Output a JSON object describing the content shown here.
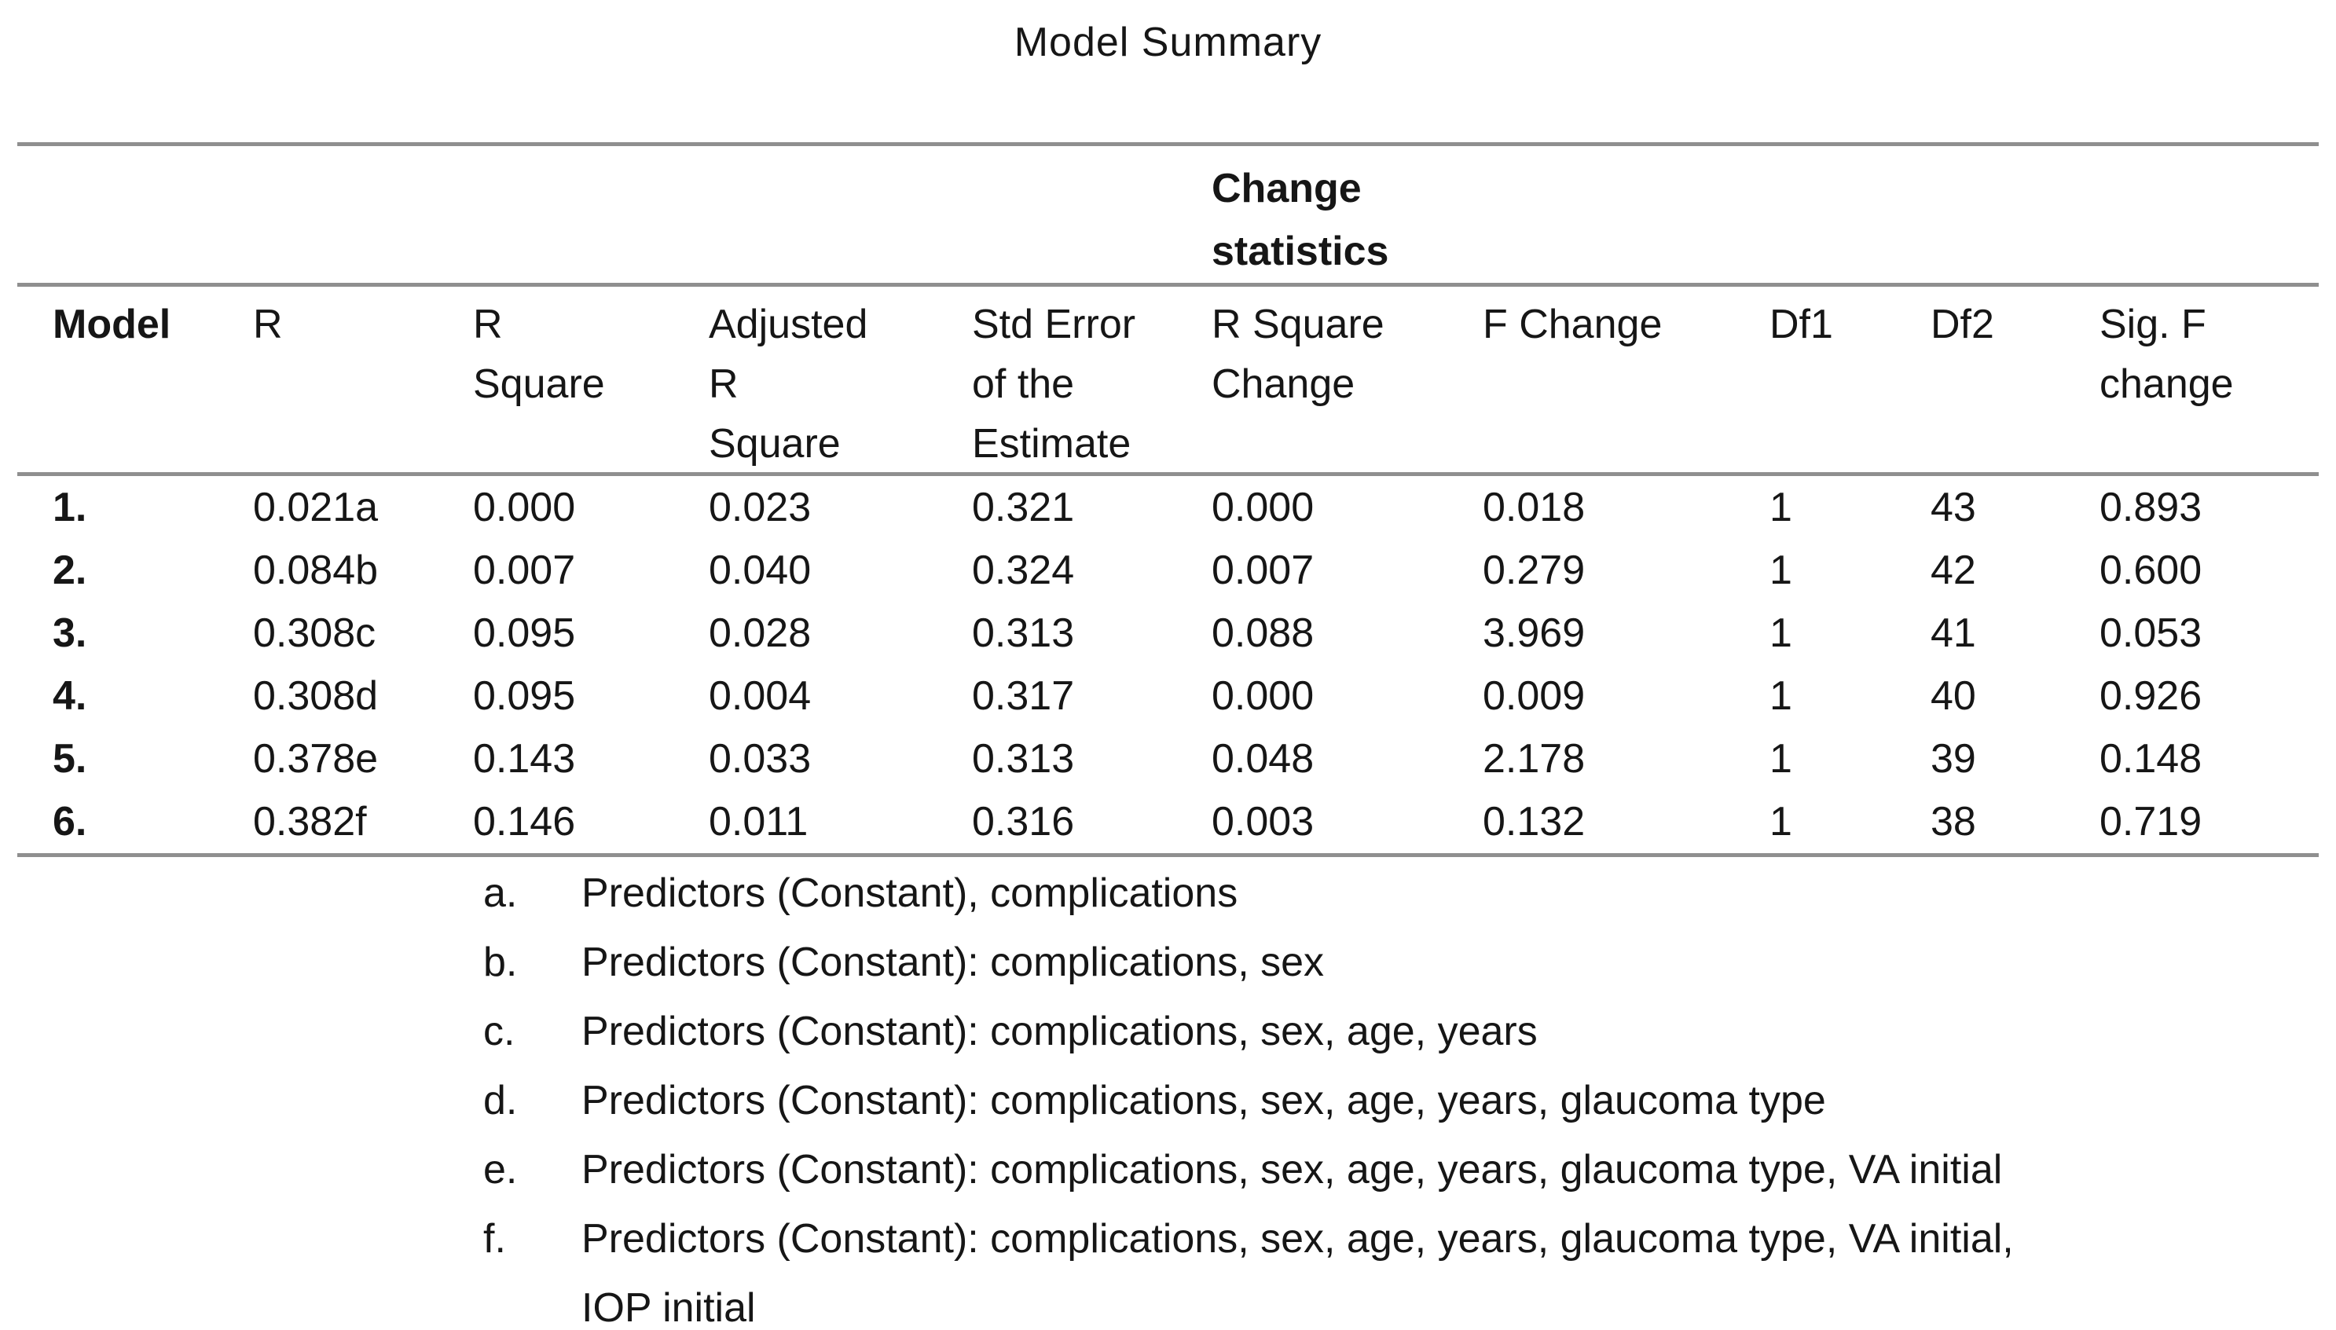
{
  "colors": {
    "background": "#ffffff",
    "text": "#161616",
    "rule": "#8f8f8f"
  },
  "title": "Model Summary",
  "table": {
    "group_header": "Change statistics",
    "columns": [
      [
        "Model"
      ],
      [
        "R"
      ],
      [
        "R",
        "Square"
      ],
      [
        "Adjusted",
        "R",
        "Square"
      ],
      [
        "Std Error",
        "of the",
        "Estimate"
      ],
      [
        "R Square",
        "Change"
      ],
      [
        "F Change"
      ],
      [
        "Df1"
      ],
      [
        "Df2"
      ],
      [
        "Sig. F",
        "change"
      ]
    ],
    "rows": [
      [
        "1.",
        "0.021a",
        "0.000",
        "0.023",
        "0.321",
        "0.000",
        "0.018",
        "1",
        "43",
        "0.893"
      ],
      [
        "2.",
        "0.084b",
        "0.007",
        "0.040",
        "0.324",
        "0.007",
        "0.279",
        "1",
        "42",
        "0.600"
      ],
      [
        "3.",
        "0.308c",
        "0.095",
        "0.028",
        "0.313",
        "0.088",
        "3.969",
        "1",
        "41",
        "0.053"
      ],
      [
        "4.",
        "0.308d",
        "0.095",
        "0.004",
        "0.317",
        "0.000",
        "0.009",
        "1",
        "40",
        "0.926"
      ],
      [
        "5.",
        "0.378e",
        "0.143",
        "0.033",
        "0.313",
        "0.048",
        "2.178",
        "1",
        "39",
        "0.148"
      ],
      [
        "6.",
        "0.382f",
        "0.146",
        "0.011",
        "0.316",
        "0.003",
        "0.132",
        "1",
        "38",
        "0.719"
      ]
    ],
    "footnotes": [
      {
        "label": "a.",
        "lines": [
          "Predictors (Constant), complications"
        ]
      },
      {
        "label": "b.",
        "lines": [
          "Predictors (Constant): complications, sex"
        ]
      },
      {
        "label": "c.",
        "lines": [
          "Predictors (Constant): complications, sex, age, years"
        ]
      },
      {
        "label": "d.",
        "lines": [
          "Predictors (Constant): complications, sex, age, years, glaucoma type"
        ]
      },
      {
        "label": "e.",
        "lines": [
          "Predictors (Constant): complications, sex, age, years, glaucoma type, VA initial"
        ]
      },
      {
        "label": "f.",
        "lines": [
          "Predictors (Constant): complications, sex, age, years, glaucoma type, VA initial,",
          "IOP initial"
        ]
      }
    ]
  }
}
